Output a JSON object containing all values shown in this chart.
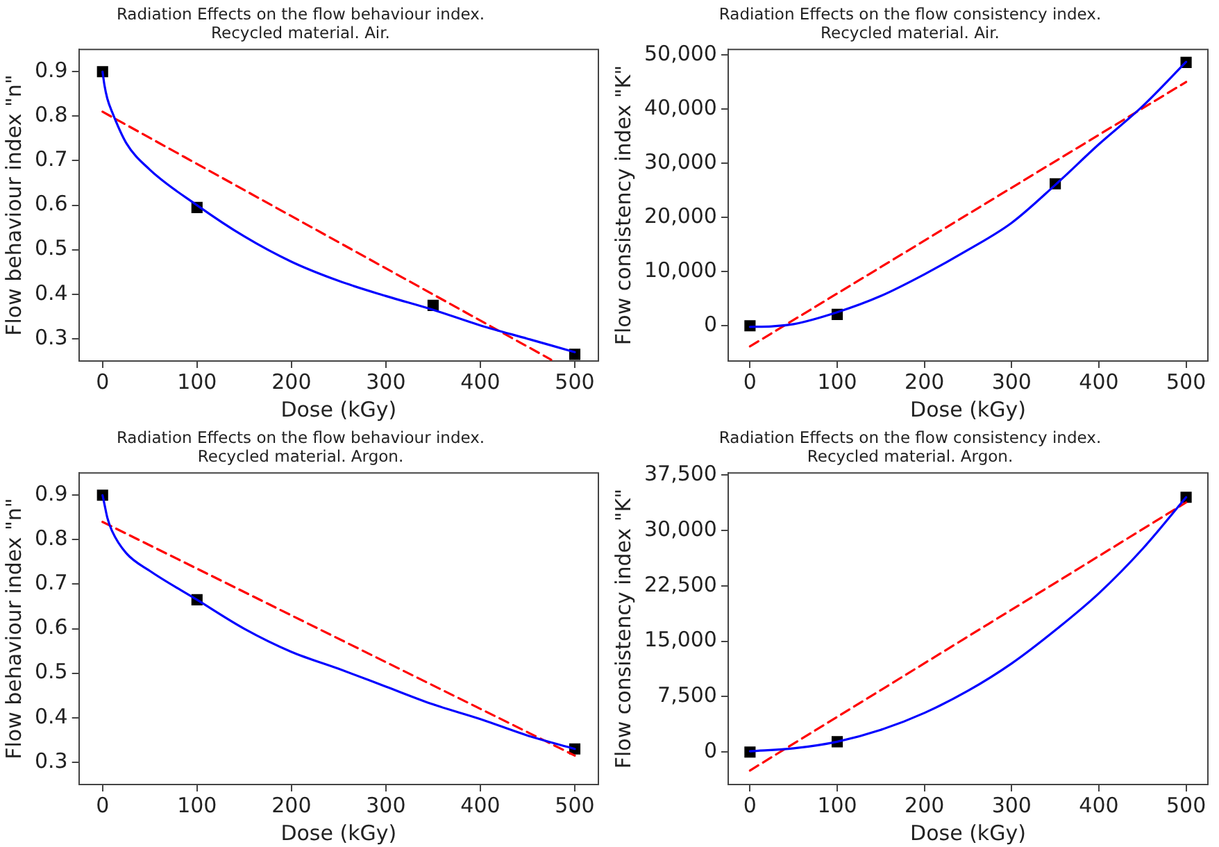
{
  "chart_data": [
    {
      "type": "scatter",
      "title": "Radiation Effects on the flow behaviour index.\nRecycled material. Air.",
      "xlabel": "Dose (kGy)",
      "ylabel": "Flow behaviour index \"n\"",
      "xlim": [
        -25,
        525
      ],
      "xticks": [
        0,
        100,
        200,
        300,
        400,
        500
      ],
      "ylim": [
        0.25,
        0.95
      ],
      "yticks": [
        0.3,
        0.4,
        0.5,
        0.6,
        0.7,
        0.8,
        0.9
      ],
      "grid": false,
      "series": [
        {
          "type": "line",
          "color": "#0000ff",
          "line_style": "solid",
          "marker": "none",
          "x": [
            0,
            2,
            5,
            10,
            25,
            50,
            100,
            150,
            200,
            250,
            300,
            350,
            400,
            450,
            500
          ],
          "values": [
            0.9,
            0.87,
            0.84,
            0.81,
            0.74,
            0.68,
            0.6,
            0.53,
            0.473,
            0.43,
            0.396,
            0.365,
            0.33,
            0.3,
            0.27
          ]
        },
        {
          "type": "line",
          "color": "#ff0000",
          "line_style": "dashed",
          "marker": "none",
          "x": [
            0,
            475
          ],
          "values": [
            0.81,
            0.253
          ]
        },
        {
          "type": "scatter",
          "color": "#000000",
          "marker": "square",
          "x": [
            0,
            100,
            350,
            500
          ],
          "values": [
            0.9,
            0.595,
            0.375,
            0.265
          ]
        }
      ]
    },
    {
      "type": "scatter",
      "title": "Radiation Effects on the flow consistency index.\nRecycled material. Air.",
      "xlabel": "Dose (kGy)",
      "ylabel": "Flow consistency index \"K\"",
      "xlim": [
        -25,
        525
      ],
      "xticks": [
        0,
        100,
        200,
        300,
        400,
        500
      ],
      "ylim": [
        -6500,
        51000
      ],
      "yticks": [
        0,
        {
          "value": 10000,
          "label": "10,000"
        },
        {
          "value": 20000,
          "label": "20,000"
        },
        {
          "value": 30000,
          "label": "30,000"
        },
        {
          "value": 40000,
          "label": "40,000"
        },
        {
          "value": 50000,
          "label": "50,000"
        }
      ],
      "grid": false,
      "series": [
        {
          "type": "line",
          "color": "#0000ff",
          "line_style": "solid",
          "marker": "none",
          "x": [
            0,
            25,
            50,
            100,
            150,
            200,
            250,
            300,
            350,
            400,
            450,
            500
          ],
          "values": [
            -200,
            -100,
            300,
            2500,
            5500,
            9500,
            14000,
            19000,
            26000,
            33500,
            40500,
            48700
          ]
        },
        {
          "type": "line",
          "color": "#ff0000",
          "line_style": "dashed",
          "marker": "none",
          "x": [
            0,
            500
          ],
          "values": [
            -3800,
            45000
          ]
        },
        {
          "type": "scatter",
          "color": "#000000",
          "marker": "square",
          "x": [
            0,
            100,
            350,
            500
          ],
          "values": [
            0,
            2100,
            26200,
            48600
          ]
        }
      ]
    },
    {
      "type": "scatter",
      "title": "Radiation Effects on the flow behaviour index.\nRecycled material. Argon.",
      "xlabel": "Dose (kGy)",
      "ylabel": "Flow behaviour index \"n\"",
      "xlim": [
        -25,
        525
      ],
      "xticks": [
        0,
        100,
        200,
        300,
        400,
        500
      ],
      "ylim": [
        0.25,
        0.95
      ],
      "yticks": [
        0.3,
        0.4,
        0.5,
        0.6,
        0.7,
        0.8,
        0.9
      ],
      "grid": false,
      "series": [
        {
          "type": "line",
          "color": "#0000ff",
          "line_style": "solid",
          "marker": "none",
          "x": [
            0,
            2,
            5,
            10,
            25,
            50,
            100,
            150,
            200,
            250,
            300,
            350,
            400,
            450,
            500
          ],
          "values": [
            0.9,
            0.88,
            0.85,
            0.82,
            0.77,
            0.73,
            0.665,
            0.6,
            0.548,
            0.51,
            0.47,
            0.43,
            0.397,
            0.36,
            0.33
          ]
        },
        {
          "type": "line",
          "color": "#ff0000",
          "line_style": "dashed",
          "marker": "none",
          "x": [
            0,
            500
          ],
          "values": [
            0.84,
            0.315
          ]
        },
        {
          "type": "scatter",
          "color": "#000000",
          "marker": "square",
          "x": [
            0,
            100,
            500
          ],
          "values": [
            0.9,
            0.665,
            0.33
          ]
        }
      ]
    },
    {
      "type": "scatter",
      "title": "Radiation Effects on the flow consistency index.\nRecycled material. Argon.",
      "xlabel": "Dose (kGy)",
      "ylabel": "Flow consistency index \"K\"",
      "xlim": [
        -25,
        525
      ],
      "xticks": [
        0,
        100,
        200,
        300,
        400,
        500
      ],
      "ylim": [
        -4400,
        37800
      ],
      "yticks": [
        0,
        {
          "value": 7500,
          "label": "7,500"
        },
        {
          "value": 15000,
          "label": "15,000"
        },
        {
          "value": 22500,
          "label": "22,500"
        },
        {
          "value": 30000,
          "label": "30,000"
        },
        {
          "value": 37500,
          "label": "37,500"
        }
      ],
      "grid": false,
      "series": [
        {
          "type": "line",
          "color": "#0000ff",
          "line_style": "solid",
          "marker": "none",
          "x": [
            0,
            50,
            100,
            150,
            200,
            250,
            300,
            350,
            400,
            450,
            500
          ],
          "values": [
            100,
            500,
            1400,
            3000,
            5300,
            8300,
            12000,
            16500,
            21500,
            27500,
            34500
          ]
        },
        {
          "type": "line",
          "color": "#ff0000",
          "line_style": "dashed",
          "marker": "none",
          "x": [
            0,
            500
          ],
          "values": [
            -2500,
            33800
          ]
        },
        {
          "type": "scatter",
          "color": "#000000",
          "marker": "square",
          "x": [
            0,
            100,
            500
          ],
          "values": [
            0,
            1400,
            34500
          ]
        }
      ]
    }
  ]
}
